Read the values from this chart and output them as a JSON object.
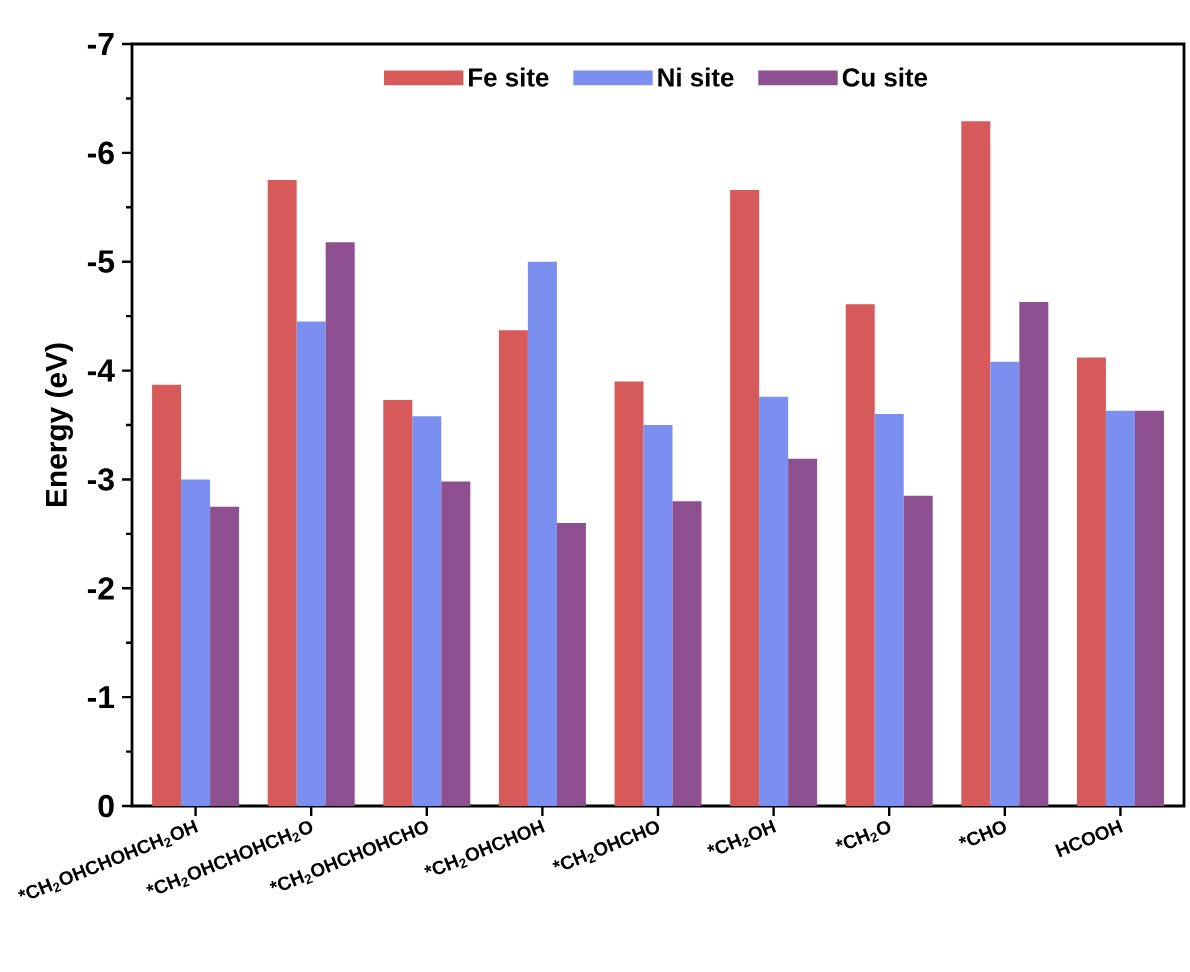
{
  "chart_data": {
    "type": "bar",
    "ylabel": "Energy (eV)",
    "categories": [
      "*CH$_{2}$OHCHOHCH$_{2}$OH",
      "*CH$_{2}$OHCHOHCH$_{2}$O",
      "*CH$_{2}$OHCHOHCHO",
      "*CH$_{2}$OHCHOH",
      "*CH$_{2}$OHCHO",
      "*CH$_{2}$OH",
      "*CH$_{2}$O",
      "*CHO",
      "HCOOH"
    ],
    "series": [
      {
        "name": "Fe site",
        "color": "#d65a5a",
        "values": [
          -3.87,
          -5.75,
          -3.73,
          -4.37,
          -3.9,
          -5.66,
          -4.61,
          -6.29,
          -4.12
        ]
      },
      {
        "name": "Ni site",
        "color": "#7b8ff0",
        "values": [
          -3.0,
          -4.45,
          -3.58,
          -5.0,
          -3.5,
          -3.76,
          -3.6,
          -4.08,
          -3.63
        ]
      },
      {
        "name": "Cu site",
        "color": "#8e4f91",
        "values": [
          -2.75,
          -5.18,
          -2.98,
          -2.6,
          -2.8,
          -3.19,
          -2.85,
          -4.63,
          -3.63
        ]
      }
    ],
    "ylim": [
      0,
      -7
    ],
    "yticks": [
      0,
      -1,
      -2,
      -3,
      -4,
      -5,
      -6,
      -7
    ],
    "grid": false,
    "legend": "top"
  }
}
